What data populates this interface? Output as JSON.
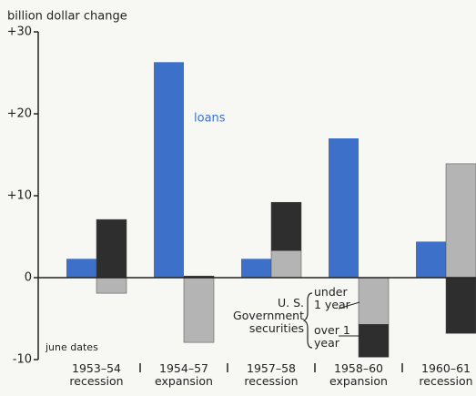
{
  "chart_data": {
    "type": "bar",
    "ylabel": "billion dollar change",
    "categories": [
      "1953–54 recession",
      "1954–57 expansion",
      "1957–58 recession",
      "1958–60 expansion",
      "1960–61 recession"
    ],
    "series": [
      {
        "name": "loans",
        "color": "#3d70c8",
        "values": [
          2.3,
          26.3,
          2.3,
          17,
          4.4
        ]
      },
      {
        "name": "under 1 year",
        "color": "#b4b4b4",
        "values": [
          -1.9,
          -7.9,
          3.3,
          -5.7,
          13.9
        ]
      },
      {
        "name": "over 1 year",
        "color": "#2e2e2e",
        "values": [
          7.1,
          0.2,
          5.9,
          -4.0,
          -6.8
        ]
      }
    ],
    "annotations": [
      "U. S. Government securities",
      "june dates"
    ],
    "ylim": [
      -10,
      30
    ],
    "yticks": [
      -10,
      {
        "value": 0,
        "label": "0"
      },
      {
        "value": 10,
        "label": "+10"
      },
      {
        "value": 20,
        "label": "+20"
      },
      {
        "value": 30,
        "label": "+30"
      }
    ]
  }
}
